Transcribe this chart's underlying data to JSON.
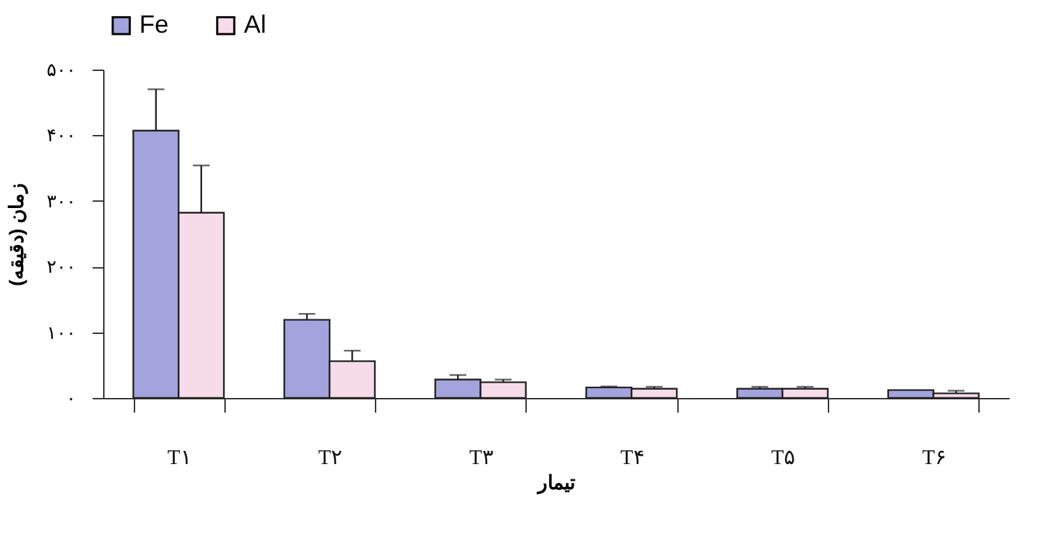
{
  "chart_data": {
    "type": "bar",
    "xlabel": "تیمار",
    "ylabel": "زمان (دقیقه)",
    "categories": [
      "T۱",
      "T۲",
      "T۳",
      "T۴",
      "T۵",
      "T۶"
    ],
    "series": [
      {
        "name": "Fe",
        "color": "#a3a3dd",
        "values": [
          407,
          119,
          28,
          16,
          14,
          12
        ],
        "errors": [
          [
            407,
            470
          ],
          [
            119,
            128
          ],
          [
            28,
            35
          ],
          [
            16,
            17.5
          ],
          [
            14,
            17
          ],
          null
        ]
      },
      {
        "name": "Al",
        "color": "#f5dce8",
        "values": [
          282,
          56,
          24,
          14,
          14,
          7
        ],
        "errors": [
          [
            282,
            354
          ],
          [
            56,
            72
          ],
          [
            24,
            28
          ],
          [
            14,
            17
          ],
          [
            14,
            17
          ],
          [
            7,
            11
          ]
        ]
      }
    ],
    "ylim": [
      0,
      500
    ],
    "yticks": [
      {
        "value": 0,
        "label": "۰"
      },
      {
        "value": 100,
        "label": "۱۰۰"
      },
      {
        "value": 200,
        "label": "۲۰۰"
      },
      {
        "value": 300,
        "label": "۳۰۰"
      },
      {
        "value": 400,
        "label": "۴۰۰"
      },
      {
        "value": 500,
        "label": "۵۰۰"
      }
    ],
    "grid": false,
    "legend": "top"
  }
}
